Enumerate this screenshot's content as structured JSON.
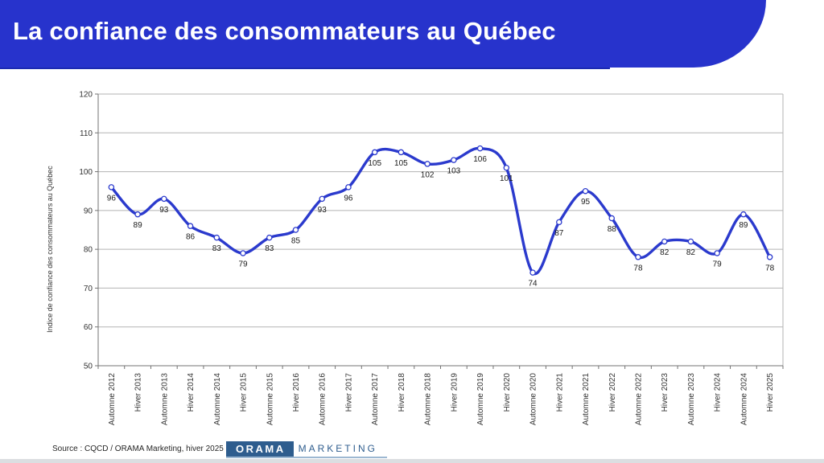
{
  "header": {
    "title": "La confiance des consommateurs au Québec",
    "background_color": "#2733cc",
    "text_color": "#ffffff"
  },
  "chart_data": {
    "type": "line",
    "title": "",
    "xlabel": "",
    "ylabel": "Indice de confiance des consommateurs au Québec",
    "ylim": [
      50,
      120
    ],
    "yticks": [
      50,
      60,
      70,
      80,
      90,
      100,
      110,
      120
    ],
    "grid": true,
    "legend": false,
    "smooth": true,
    "data_labels": true,
    "line_color": "#2b3acd",
    "marker_style": "open-circle",
    "gridline_color": "#b3b3b3",
    "axis_color": "#737373",
    "categories": [
      "Automne 2012",
      "Hiver 2013",
      "Automne 2013",
      "Hiver 2014",
      "Automne 2014",
      "Hiver 2015",
      "Automne 2015",
      "Hiver 2016",
      "Automne 2016",
      "Hiver 2017",
      "Automne 2017",
      "Hiver 2018",
      "Automne 2018",
      "Hiver 2019",
      "Automne 2019",
      "Hiver 2020",
      "Automne 2020",
      "Hiver 2021",
      "Automne 2021",
      "Hiver 2022",
      "Automne 2022",
      "Hiver 2023",
      "Automne 2023",
      "Hiver 2024",
      "Automne 2024",
      "Hiver 2025"
    ],
    "values": [
      96,
      89,
      93,
      86,
      83,
      79,
      83,
      85,
      93,
      96,
      105,
      105,
      102,
      103,
      106,
      101,
      74,
      87,
      95,
      88,
      78,
      82,
      82,
      79,
      89,
      78
    ]
  },
  "footer": {
    "source": "Source : CQCD / ORAMA Marketing, hiver 2025",
    "logo": {
      "primary": "ORAMA",
      "secondary": "MARKETING",
      "color": "#2e5d8e"
    }
  }
}
